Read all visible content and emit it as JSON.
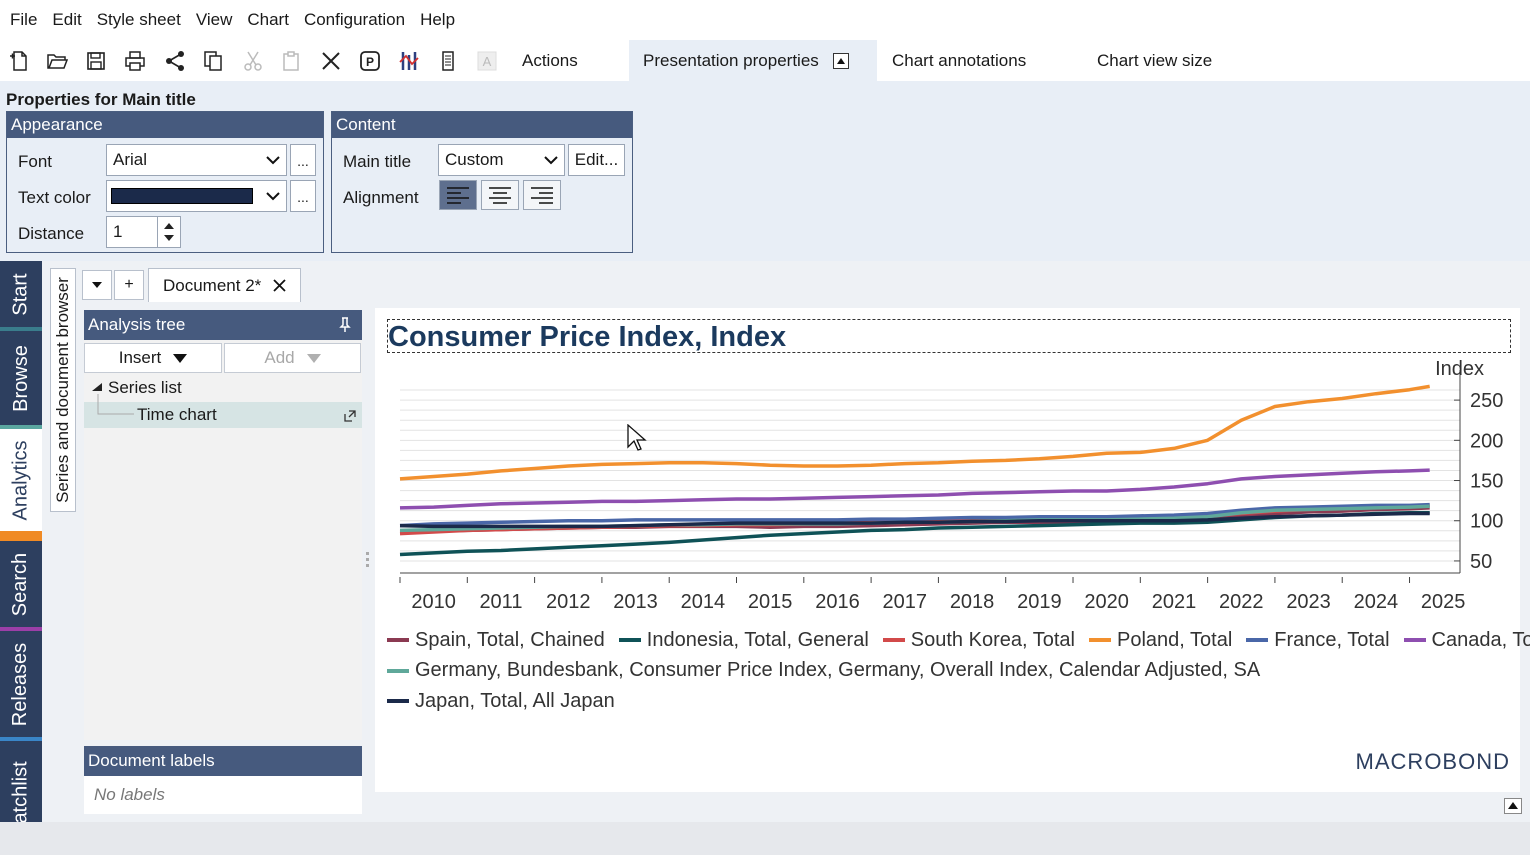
{
  "menu": [
    "File",
    "Edit",
    "Style sheet",
    "View",
    "Chart",
    "Configuration",
    "Help"
  ],
  "toolbar": {
    "icons": [
      "new-document-icon",
      "open-folder-icon",
      "save-icon",
      "print-icon",
      "share-icon",
      "copy-icon",
      "cut-icon",
      "paste-icon",
      "delete-icon",
      "presentation-icon",
      "chart-type-icon",
      "page-icon",
      "text-style-icon"
    ],
    "tabs": [
      "Actions",
      "Presentation properties",
      "Chart annotations",
      "Chart view size"
    ],
    "active_tab": "Presentation properties"
  },
  "properties": {
    "title": "Properties for Main title",
    "appearance": {
      "heading": "Appearance",
      "font_label": "Font",
      "font_value": "Arial",
      "text_color_label": "Text color",
      "text_color_value": "#1b2a4a",
      "distance_label": "Distance",
      "distance_value": "1",
      "more": "..."
    },
    "content": {
      "heading": "Content",
      "main_title_label": "Main title",
      "main_title_value": "Custom",
      "edit_button": "Edit...",
      "alignment_label": "Alignment",
      "alignment": "left"
    }
  },
  "side_tabs": [
    {
      "label": "Start",
      "color": "#3a7d8c"
    },
    {
      "label": "Browse",
      "color": "#5aa7a0"
    },
    {
      "label": "Analytics",
      "color": "#f08a24"
    },
    {
      "label": "Search",
      "color": "#9b3fa8"
    },
    {
      "label": "Releases",
      "color": "#3a86c8"
    },
    {
      "label": "Watchlist",
      "color": "#2d3f5f"
    }
  ],
  "series_browser_tab": "Series and document browser",
  "document_tab": {
    "label": "Document 2*",
    "add": "+"
  },
  "analysis_tree": {
    "heading": "Analysis tree",
    "insert": "Insert",
    "add": "Add",
    "nodes": [
      "Series list",
      "Time chart"
    ]
  },
  "document_labels": {
    "heading": "Document labels",
    "empty": "No labels"
  },
  "brand": "MACROBOND",
  "chart_data": {
    "type": "line",
    "title": "Consumer Price Index, Index",
    "ylabel": "Index",
    "x": [
      2009.5,
      2010.0,
      2010.5,
      2011.0,
      2011.5,
      2012.0,
      2012.5,
      2013.0,
      2013.5,
      2014.0,
      2014.5,
      2015.0,
      2015.5,
      2016.0,
      2016.5,
      2017.0,
      2017.5,
      2018.0,
      2018.5,
      2019.0,
      2019.5,
      2020.0,
      2020.5,
      2021.0,
      2021.5,
      2022.0,
      2022.5,
      2023.0,
      2023.5,
      2024.0,
      2024.5,
      2024.8
    ],
    "xticks": [
      "2010",
      "2011",
      "2012",
      "2013",
      "2014",
      "2015",
      "2016",
      "2017",
      "2018",
      "2019",
      "2020",
      "2021",
      "2022",
      "2023",
      "2024",
      "2025"
    ],
    "yticks": [
      50,
      100,
      150,
      200,
      250
    ],
    "ylim": [
      35,
      275
    ],
    "series": [
      {
        "name": "Spain, Total, Chained",
        "color": "#8b3a52",
        "values": [
          86,
          87,
          88,
          89,
          90,
          91,
          92,
          92,
          93,
          93,
          93,
          92,
          93,
          93,
          94,
          95,
          96,
          97,
          98,
          98,
          98,
          98,
          98,
          99,
          101,
          106,
          109,
          111,
          112,
          114,
          115,
          116
        ]
      },
      {
        "name": "Indonesia, Total, General",
        "color": "#0f5257",
        "values": [
          58,
          60,
          62,
          63,
          65,
          67,
          69,
          71,
          73,
          76,
          79,
          82,
          84,
          86,
          88,
          89,
          91,
          92,
          93,
          94,
          95,
          96,
          97,
          97,
          98,
          101,
          104,
          106,
          107,
          109,
          110,
          110
        ]
      },
      {
        "name": "South Korea, Total",
        "color": "#d24a4a",
        "values": [
          84,
          86,
          88,
          89,
          90,
          91,
          92,
          93,
          94,
          94,
          95,
          95,
          96,
          97,
          98,
          99,
          100,
          101,
          101,
          102,
          102,
          102,
          103,
          104,
          106,
          109,
          112,
          114,
          115,
          117,
          118,
          119
        ]
      },
      {
        "name": "Poland, Total",
        "color": "#f2902e",
        "values": [
          152,
          155,
          158,
          162,
          165,
          168,
          170,
          171,
          172,
          172,
          171,
          169,
          168,
          168,
          169,
          171,
          172,
          174,
          175,
          177,
          180,
          184,
          185,
          190,
          200,
          225,
          242,
          248,
          252,
          258,
          263,
          267
        ]
      },
      {
        "name": "France, Total",
        "color": "#4a67a8",
        "values": [
          94,
          96,
          97,
          98,
          99,
          100,
          100,
          101,
          101,
          101,
          101,
          101,
          101,
          101,
          102,
          102,
          103,
          104,
          104,
          105,
          105,
          105,
          106,
          107,
          109,
          113,
          116,
          117,
          118,
          119,
          119,
          120
        ]
      },
      {
        "name": "Canada, Total, SA",
        "color": "#8e4fb0",
        "values": [
          116,
          117,
          119,
          121,
          122,
          123,
          124,
          124,
          125,
          126,
          127,
          127,
          128,
          129,
          130,
          131,
          132,
          134,
          135,
          136,
          137,
          137,
          139,
          142,
          146,
          152,
          155,
          157,
          159,
          161,
          162,
          163
        ]
      },
      {
        "name": "Germany, Bundesbank, Consumer Price Index, Germany, Overall Index, Calendar Adjusted, SA",
        "color": "#5fa89a",
        "values": [
          88,
          89,
          90,
          91,
          92,
          93,
          93,
          94,
          95,
          95,
          96,
          96,
          96,
          96,
          97,
          98,
          98,
          99,
          100,
          101,
          101,
          101,
          102,
          103,
          105,
          110,
          113,
          114,
          115,
          116,
          117,
          118
        ]
      },
      {
        "name": "Japan, Total, All Japan",
        "color": "#1b2a4a",
        "values": [
          94,
          93,
          93,
          93,
          93,
          93,
          93,
          94,
          95,
          96,
          97,
          97,
          97,
          97,
          97,
          98,
          98,
          99,
          99,
          100,
          100,
          100,
          100,
          100,
          101,
          103,
          105,
          106,
          107,
          108,
          109,
          109
        ]
      }
    ],
    "legend_rows": [
      [
        0,
        1,
        2,
        3,
        4,
        5
      ],
      [
        6
      ],
      [
        7
      ]
    ],
    "legend_position": "bottom",
    "grid": true
  }
}
